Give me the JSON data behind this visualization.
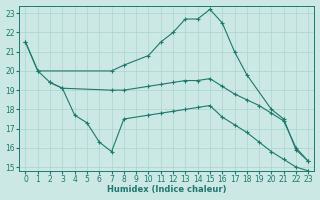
{
  "xlabel": "Humidex (Indice chaleur)",
  "background_color": "#cce8e4",
  "grid_color": "#b0d8d4",
  "line_color": "#1a7a6e",
  "xlim": [
    -0.5,
    23.5
  ],
  "ylim": [
    14.8,
    23.4
  ],
  "xticks": [
    0,
    1,
    2,
    3,
    4,
    5,
    6,
    7,
    8,
    9,
    10,
    11,
    12,
    13,
    14,
    15,
    16,
    17,
    18,
    19,
    20,
    21,
    22,
    23
  ],
  "yticks": [
    15,
    16,
    17,
    18,
    19,
    20,
    21,
    22,
    23
  ],
  "series": [
    {
      "x": [
        0,
        1,
        7,
        8,
        10,
        11,
        12,
        13,
        14,
        15,
        16,
        17,
        18,
        20,
        21,
        22,
        23
      ],
      "y": [
        21.5,
        20.0,
        20.0,
        20.3,
        20.8,
        21.5,
        22.0,
        22.7,
        22.7,
        23.2,
        22.5,
        21.0,
        19.8,
        18.0,
        17.5,
        15.9,
        15.3
      ]
    },
    {
      "x": [
        0,
        1,
        2,
        3,
        7,
        8,
        10,
        11,
        12,
        13,
        14,
        15,
        16,
        17,
        18,
        19,
        20,
        21,
        22,
        23
      ],
      "y": [
        21.5,
        20.0,
        19.4,
        19.1,
        19.0,
        19.0,
        19.2,
        19.3,
        19.4,
        19.5,
        19.5,
        19.6,
        19.2,
        18.8,
        18.5,
        18.2,
        17.8,
        17.4,
        16.0,
        15.3
      ]
    },
    {
      "x": [
        2,
        3,
        4,
        5,
        6,
        7,
        8,
        10,
        11,
        12,
        13,
        14,
        15,
        16,
        17,
        18,
        19,
        20,
        21,
        22,
        23
      ],
      "y": [
        19.4,
        19.1,
        17.7,
        17.3,
        16.3,
        15.8,
        17.5,
        17.7,
        17.8,
        17.9,
        18.0,
        18.1,
        18.2,
        17.6,
        17.2,
        16.8,
        16.3,
        15.8,
        15.4,
        15.0,
        14.8
      ]
    }
  ]
}
